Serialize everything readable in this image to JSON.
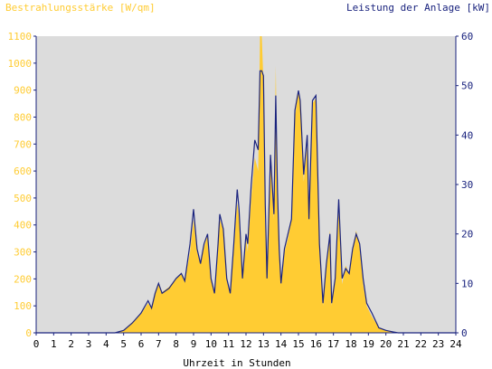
{
  "chart_data": {
    "type": "area",
    "title_left": "Bestrahlungsstärke [W/qm]",
    "title_right": "Leistung der Anlage [kW]",
    "xlabel": "Uhrzeit in Stunden",
    "xlim": [
      0,
      24
    ],
    "ylim_left": [
      0,
      1100
    ],
    "ylim_right": [
      0,
      60
    ],
    "x_ticks": [
      "0",
      "1",
      "2",
      "3",
      "4",
      "5",
      "6",
      "7",
      "8",
      "9",
      "10",
      "11",
      "12",
      "13",
      "14",
      "15",
      "16",
      "17",
      "18",
      "19",
      "20",
      "21",
      "22",
      "23",
      "24"
    ],
    "y_left_ticks": [
      "0",
      "100",
      "200",
      "300",
      "400",
      "500",
      "600",
      "700",
      "800",
      "900",
      "1000",
      "1100"
    ],
    "y_right_ticks": [
      "0",
      "10",
      "20",
      "30",
      "40",
      "50",
      "60"
    ],
    "grid": false,
    "colors": {
      "background": "#ffffff",
      "plot_bg": "#dcdcdc",
      "irradiance_fill": "#ffcc33",
      "irradiance_text": "#ffcc33",
      "power_line": "#1a237e",
      "power_text": "#1a237e",
      "axis": "#1a237e"
    },
    "series": [
      {
        "name": "Bestrahlungsstärke [W/qm]",
        "axis": "left",
        "x": [
          0,
          4.5,
          5,
          5.5,
          6,
          6.4,
          6.6,
          6.8,
          7,
          7.2,
          7.6,
          8,
          8.3,
          8.5,
          8.8,
          9,
          9.2,
          9.4,
          9.6,
          9.8,
          10,
          10.2,
          10.4,
          10.5,
          10.7,
          10.9,
          11.1,
          11.3,
          11.5,
          11.6,
          11.8,
          12,
          12.1,
          12.3,
          12.5,
          12.7,
          12.8,
          12.9,
          13,
          13.1,
          13.2,
          13.4,
          13.6,
          13.7,
          13.8,
          13.9,
          14,
          14.2,
          14.4,
          14.6,
          14.8,
          15,
          15.1,
          15.3,
          15.5,
          15.6,
          15.8,
          16,
          16.2,
          16.4,
          16.6,
          16.8,
          16.9,
          17.1,
          17.3,
          17.5,
          17.7,
          17.9,
          18.1,
          18.3,
          18.5,
          18.7,
          18.9,
          19.2,
          19.6,
          20,
          20.4,
          20.7,
          21,
          24
        ],
        "values": [
          0,
          0,
          10,
          40,
          70,
          110,
          90,
          150,
          180,
          150,
          170,
          200,
          220,
          190,
          300,
          420,
          300,
          260,
          320,
          360,
          200,
          150,
          310,
          420,
          380,
          200,
          150,
          320,
          480,
          430,
          200,
          350,
          300,
          500,
          650,
          600,
          1100,
          1100,
          930,
          400,
          200,
          620,
          420,
          990,
          500,
          310,
          180,
          300,
          350,
          420,
          800,
          900,
          850,
          560,
          700,
          420,
          850,
          870,
          300,
          100,
          250,
          380,
          100,
          200,
          460,
          180,
          250,
          220,
          300,
          380,
          320,
          180,
          100,
          60,
          20,
          10,
          5,
          0,
          0,
          0
        ]
      },
      {
        "name": "Leistung der Anlage [kW]",
        "axis": "right",
        "x": [
          0,
          4.5,
          5,
          5.5,
          6,
          6.4,
          6.6,
          6.8,
          7,
          7.2,
          7.6,
          8,
          8.3,
          8.5,
          8.8,
          9,
          9.2,
          9.4,
          9.6,
          9.8,
          10,
          10.2,
          10.4,
          10.5,
          10.7,
          10.9,
          11.1,
          11.3,
          11.5,
          11.6,
          11.8,
          12,
          12.1,
          12.3,
          12.5,
          12.7,
          12.8,
          12.9,
          13,
          13.1,
          13.2,
          13.4,
          13.6,
          13.7,
          13.8,
          13.9,
          14,
          14.2,
          14.4,
          14.6,
          14.8,
          15,
          15.1,
          15.3,
          15.5,
          15.6,
          15.8,
          16,
          16.2,
          16.4,
          16.6,
          16.8,
          16.9,
          17.1,
          17.3,
          17.5,
          17.7,
          17.9,
          18.1,
          18.3,
          18.5,
          18.7,
          18.9,
          19.2,
          19.6,
          20,
          20.4,
          20.7,
          21,
          24
        ],
        "values": [
          0,
          0,
          0.5,
          2,
          4,
          6.5,
          5,
          8,
          10,
          8,
          9,
          11,
          12,
          10.5,
          18,
          25,
          17,
          14,
          18,
          20,
          11,
          8,
          18,
          24,
          21,
          11,
          8,
          18,
          29,
          25,
          11,
          20,
          18,
          30,
          39,
          37,
          53,
          53,
          52,
          26,
          11,
          36,
          24,
          48,
          29,
          17,
          10,
          17,
          20,
          23,
          45,
          49,
          47,
          32,
          40,
          23,
          47,
          48,
          18,
          6,
          14,
          20,
          6,
          11,
          27,
          11,
          13,
          12,
          17,
          20,
          18,
          11,
          6,
          4,
          1,
          0.5,
          0.2,
          0,
          0,
          0
        ]
      }
    ]
  }
}
